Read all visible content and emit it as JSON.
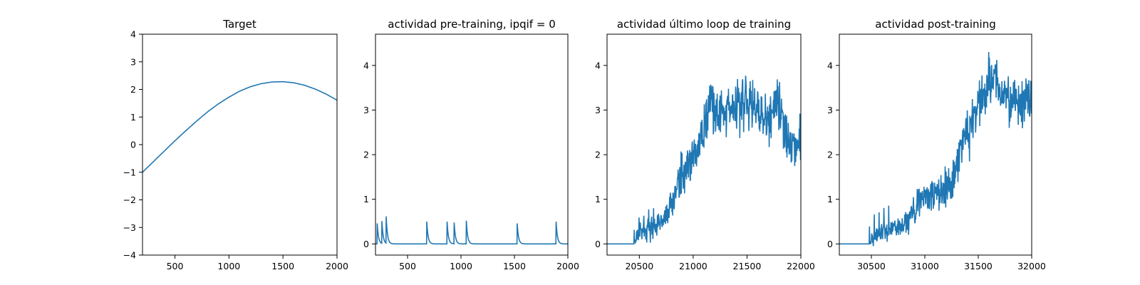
{
  "chart_data": [
    {
      "type": "line",
      "title": "Target",
      "xlabel": "",
      "ylabel": "",
      "xlim": [
        200,
        2000
      ],
      "ylim": [
        -4,
        4
      ],
      "x_ticks": [
        500,
        1000,
        1500,
        2000
      ],
      "y_ticks": [
        -4,
        -3,
        -2,
        -1,
        0,
        1,
        2,
        3,
        4
      ],
      "color": "#1f77b4",
      "grid": false,
      "series": [
        {
          "x": [
            200,
            300,
            400,
            500,
            600,
            700,
            800,
            900,
            1000,
            1100,
            1200,
            1300,
            1400,
            1500,
            1600,
            1700,
            1800,
            1900,
            2000
          ],
          "y": [
            -1.0,
            -0.62,
            -0.24,
            0.14,
            0.5,
            0.85,
            1.18,
            1.47,
            1.72,
            1.94,
            2.1,
            2.21,
            2.27,
            2.28,
            2.24,
            2.15,
            2.01,
            1.83,
            1.61
          ]
        }
      ]
    },
    {
      "type": "line",
      "title": "actividad pre-training, ipqif = 0",
      "xlabel": "",
      "ylabel": "",
      "xlim": [
        200,
        2000
      ],
      "ylim": [
        -0.25,
        4.7
      ],
      "x_ticks": [
        500,
        1000,
        1500,
        2000
      ],
      "y_ticks": [
        0,
        1,
        2,
        3,
        4
      ],
      "color": "#1f77b4",
      "grid": false,
      "series": [
        {
          "spike_times": [
            215,
            260,
            300,
            680,
            870,
            935,
            1050,
            1525,
            1890
          ],
          "spike_peaks": [
            0.5,
            0.5,
            0.6,
            0.5,
            0.5,
            0.52,
            0.52,
            0.5,
            0.5
          ],
          "baseline": 0
        }
      ]
    },
    {
      "type": "line",
      "title": "actividad último loop de training",
      "xlabel": "",
      "ylabel": "",
      "xlim": [
        20200,
        22000
      ],
      "ylim": [
        -0.25,
        4.7
      ],
      "x_ticks": [
        20500,
        21000,
        21500,
        22000
      ],
      "y_ticks": [
        0,
        1,
        2,
        3,
        4
      ],
      "color": "#1f77b4",
      "grid": false,
      "series": [
        {
          "x": [
            20200,
            20450,
            20500,
            20600,
            20700,
            20800,
            20900,
            21000,
            21100,
            21150,
            21200,
            21300,
            21400,
            21500,
            21600,
            21700,
            21780,
            21850,
            21900,
            22000
          ],
          "y": [
            0,
            0,
            0.3,
            0.3,
            0.5,
            0.9,
            1.6,
            2.0,
            2.6,
            3.2,
            2.8,
            3.0,
            3.1,
            3.2,
            3.0,
            2.7,
            3.2,
            2.5,
            2.2,
            2.3
          ]
        }
      ]
    },
    {
      "type": "line",
      "title": "actividad post-training",
      "xlabel": "",
      "ylabel": "",
      "xlim": [
        30200,
        32000
      ],
      "ylim": [
        -0.25,
        4.7
      ],
      "x_ticks": [
        30500,
        31000,
        31500,
        32000
      ],
      "y_ticks": [
        0,
        1,
        2,
        3,
        4
      ],
      "color": "#1f77b4",
      "grid": false,
      "series": [
        {
          "x": [
            30200,
            30480,
            30600,
            30800,
            30900,
            31000,
            31100,
            31200,
            31300,
            31400,
            31500,
            31600,
            31650,
            31700,
            31800,
            31900,
            32000
          ],
          "y": [
            0,
            0,
            0.3,
            0.4,
            0.8,
            1.1,
            1.2,
            1.2,
            1.8,
            2.5,
            3.1,
            3.6,
            3.7,
            3.4,
            3.1,
            3.1,
            3.3
          ]
        }
      ]
    }
  ]
}
